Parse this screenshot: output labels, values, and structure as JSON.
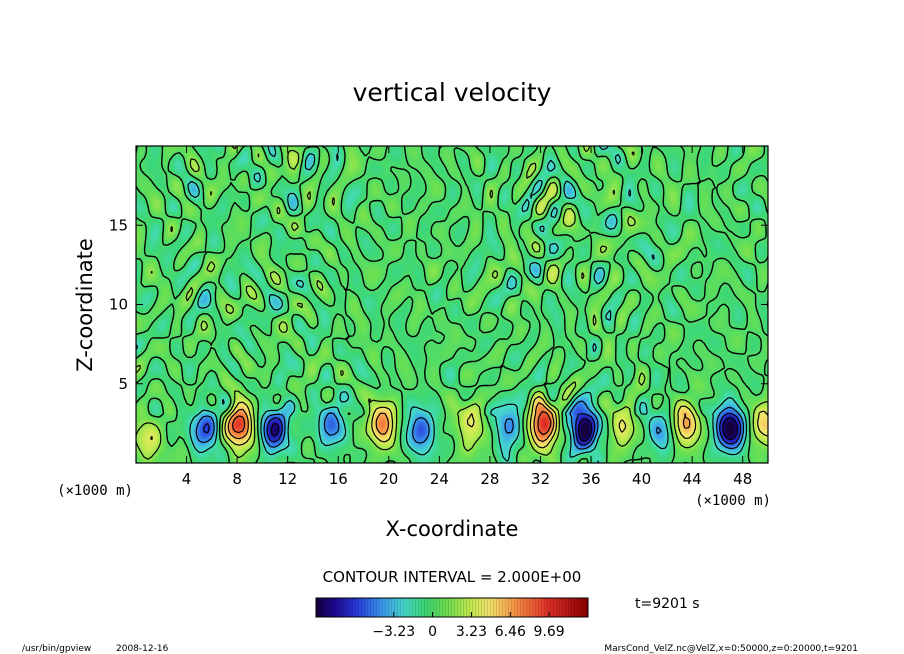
{
  "chart_data": {
    "type": "heatmap",
    "title": "vertical velocity",
    "xlabel": "X-coordinate",
    "ylabel": "Z-coordinate",
    "x_unit_label": "(×1000 m)",
    "y_unit_label": "(×1000 m)",
    "xlim": [
      0,
      50
    ],
    "ylim": [
      0,
      20
    ],
    "x_ticks": [
      4,
      8,
      12,
      16,
      20,
      24,
      28,
      32,
      36,
      40,
      44,
      48
    ],
    "y_ticks": [
      5,
      10,
      15
    ],
    "contour_interval_label": "CONTOUR INTERVAL = 2.000E+00",
    "colorbar": {
      "min": -9.69,
      "max": 12.92,
      "tick_values": [
        -3.23,
        0,
        3.23,
        6.46,
        9.69
      ],
      "tick_labels": [
        "−3.23",
        "0",
        "3.23",
        "6.46",
        "9.69"
      ]
    },
    "time_label": "t=9201 s",
    "updrafts": [
      {
        "x": 0.9,
        "z": 1.4,
        "peak": 4.0
      },
      {
        "x": 8.2,
        "z": 2.4,
        "peak": 10.0
      },
      {
        "x": 19.5,
        "z": 2.4,
        "peak": 7.5
      },
      {
        "x": 26.5,
        "z": 2.4,
        "peak": 4.5
      },
      {
        "x": 32.2,
        "z": 2.4,
        "peak": 10.5
      },
      {
        "x": 38.5,
        "z": 2.2,
        "peak": 4.0
      },
      {
        "x": 43.5,
        "z": 2.4,
        "peak": 6.5
      },
      {
        "x": 49.8,
        "z": 2.4,
        "peak": 5.5
      }
    ],
    "downdrafts": [
      {
        "x": 5.5,
        "z": 2.2,
        "peak": -6.0
      },
      {
        "x": 11.0,
        "z": 2.2,
        "peak": -8.0
      },
      {
        "x": 15.5,
        "z": 2.4,
        "peak": -5.0
      },
      {
        "x": 22.5,
        "z": 2.0,
        "peak": -6.0
      },
      {
        "x": 29.5,
        "z": 2.4,
        "peak": -5.0
      },
      {
        "x": 35.5,
        "z": 2.2,
        "peak": -10.5
      },
      {
        "x": 41.5,
        "z": 2.0,
        "peak": -4.0
      },
      {
        "x": 47.0,
        "z": 2.2,
        "peak": -10.5
      }
    ]
  },
  "footer": {
    "program": "/usr/bin/gpview",
    "date": "2008-12-16",
    "source": "MarsCond_VelZ.nc@VelZ,x=0:50000,z=0:20000,t=9201"
  },
  "colors": {
    "background_field": "#33cc66",
    "contour_line": "#000000"
  }
}
